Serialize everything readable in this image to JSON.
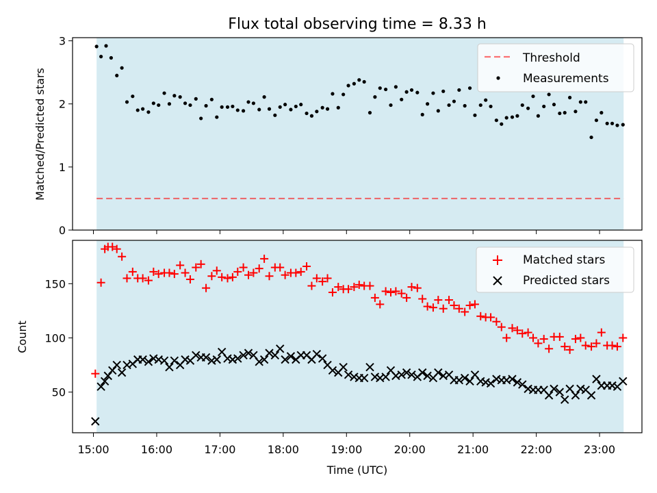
{
  "figure": {
    "title": "Flux total observing time = 8.33 h",
    "colors": {
      "shade": "#add8e6",
      "threshold": "#ff0000",
      "matched": "#ff0000",
      "predicted": "#000000",
      "measurements": "#000000"
    }
  },
  "chart_data": [
    {
      "type": "scatter",
      "ylabel": "Matched/Predicted stars",
      "xlim_hours": [
        14.67,
        23.67
      ],
      "ylim": [
        0,
        3.05
      ],
      "xticks": [
        "15:00",
        "16:00",
        "17:00",
        "18:00",
        "19:00",
        "20:00",
        "21:00",
        "22:00",
        "23:00"
      ],
      "yticks": [
        "0",
        "1",
        "2",
        "3"
      ],
      "yticks_values": [
        0,
        1,
        2,
        3
      ],
      "shaded_span_hours": [
        15.05,
        23.38
      ],
      "legend_position": "top-right",
      "threshold": {
        "name": "Threshold",
        "value": 0.5
      },
      "series": [
        {
          "name": "Measurements",
          "x": [
            15.05,
            15.12,
            15.2,
            15.28,
            15.37,
            15.45,
            15.53,
            15.62,
            15.7,
            15.78,
            15.87,
            15.95,
            16.03,
            16.12,
            16.2,
            16.28,
            16.37,
            16.45,
            16.53,
            16.62,
            16.7,
            16.78,
            16.87,
            16.95,
            17.03,
            17.12,
            17.2,
            17.28,
            17.37,
            17.45,
            17.53,
            17.62,
            17.7,
            17.78,
            17.87,
            17.95,
            18.03,
            18.12,
            18.2,
            18.28,
            18.37,
            18.45,
            18.53,
            18.62,
            18.7,
            18.78,
            18.87,
            18.95,
            19.03,
            19.12,
            19.2,
            19.28,
            19.37,
            19.45,
            19.53,
            19.62,
            19.7,
            19.78,
            19.87,
            19.95,
            20.03,
            20.12,
            20.2,
            20.28,
            20.37,
            20.45,
            20.53,
            20.62,
            20.7,
            20.78,
            20.87,
            20.95,
            21.03,
            21.12,
            21.2,
            21.28,
            21.37,
            21.45,
            21.53,
            21.62,
            21.7,
            21.78,
            21.87,
            21.95,
            22.03,
            22.12,
            22.2,
            22.28,
            22.37,
            22.45,
            22.53,
            22.62,
            22.7,
            22.78,
            22.87,
            22.95,
            23.03,
            23.12,
            23.2,
            23.28,
            23.37
          ],
          "y": [
            2.91,
            2.75,
            2.92,
            2.73,
            2.45,
            2.57,
            2.03,
            2.12,
            1.9,
            1.92,
            1.87,
            2.01,
            1.98,
            2.17,
            2.0,
            2.13,
            2.11,
            2.01,
            1.98,
            2.08,
            1.77,
            1.97,
            2.07,
            1.79,
            1.95,
            1.95,
            1.96,
            1.9,
            1.89,
            2.03,
            2.01,
            1.91,
            2.11,
            1.92,
            1.82,
            1.95,
            1.99,
            1.91,
            1.96,
            1.99,
            1.85,
            1.81,
            1.88,
            1.94,
            1.92,
            2.16,
            1.94,
            2.15,
            2.29,
            2.32,
            2.38,
            2.35,
            1.86,
            2.11,
            2.25,
            2.23,
            1.98,
            2.27,
            2.07,
            2.19,
            2.22,
            2.18,
            1.83,
            2.0,
            2.17,
            1.89,
            2.2,
            1.98,
            2.04,
            2.22,
            1.97,
            2.25,
            1.82,
            1.98,
            2.06,
            1.96,
            1.74,
            1.68,
            1.78,
            1.79,
            1.81,
            1.98,
            1.93,
            2.12,
            1.81,
            1.96,
            2.15,
            1.99,
            1.85,
            1.86,
            2.1,
            1.88,
            2.03,
            2.03,
            1.47,
            1.74,
            1.86,
            1.69,
            1.69,
            1.66,
            1.67
          ]
        }
      ]
    },
    {
      "type": "scatter",
      "xlabel": "Time (UTC)",
      "ylabel": "Count",
      "xlim_hours": [
        14.67,
        23.67
      ],
      "ylim": [
        12.5,
        190
      ],
      "xticks": [
        "15:00",
        "16:00",
        "17:00",
        "18:00",
        "19:00",
        "20:00",
        "21:00",
        "22:00",
        "23:00"
      ],
      "yticks": [
        "50",
        "100",
        "150"
      ],
      "yticks_values": [
        50,
        100,
        150
      ],
      "shaded_span_hours": [
        15.05,
        23.38
      ],
      "legend_position": "top-right",
      "series": [
        {
          "name": "Matched stars",
          "marker": "+",
          "x": [
            15.03,
            15.12,
            15.18,
            15.23,
            15.3,
            15.37,
            15.45,
            15.53,
            15.62,
            15.7,
            15.78,
            15.87,
            15.95,
            16.03,
            16.12,
            16.2,
            16.28,
            16.37,
            16.45,
            16.53,
            16.62,
            16.7,
            16.78,
            16.87,
            16.95,
            17.03,
            17.12,
            17.2,
            17.28,
            17.37,
            17.45,
            17.53,
            17.62,
            17.7,
            17.78,
            17.87,
            17.95,
            18.03,
            18.12,
            18.2,
            18.28,
            18.37,
            18.45,
            18.53,
            18.62,
            18.7,
            18.78,
            18.87,
            18.95,
            19.03,
            19.12,
            19.2,
            19.28,
            19.37,
            19.45,
            19.53,
            19.62,
            19.7,
            19.78,
            19.87,
            19.95,
            20.03,
            20.12,
            20.2,
            20.28,
            20.37,
            20.45,
            20.53,
            20.62,
            20.7,
            20.78,
            20.87,
            20.95,
            21.03,
            21.12,
            21.2,
            21.28,
            21.37,
            21.45,
            21.53,
            21.62,
            21.7,
            21.78,
            21.87,
            21.95,
            22.03,
            22.12,
            22.2,
            22.28,
            22.37,
            22.45,
            22.53,
            22.62,
            22.7,
            22.78,
            22.87,
            22.95,
            23.03,
            23.12,
            23.2,
            23.28,
            23.37
          ],
          "y": [
            67,
            151,
            182,
            184,
            184,
            182,
            175,
            155,
            161,
            155,
            155,
            153,
            161,
            159,
            160,
            160,
            159,
            167,
            160,
            154,
            165,
            168,
            146,
            157,
            162,
            156,
            155,
            156,
            161,
            165,
            158,
            160,
            164,
            173,
            157,
            165,
            165,
            158,
            160,
            160,
            161,
            166,
            148,
            155,
            152,
            155,
            142,
            147,
            145,
            145,
            147,
            149,
            148,
            148,
            137,
            131,
            143,
            142,
            143,
            141,
            137,
            147,
            146,
            136,
            129,
            128,
            135,
            127,
            135,
            130,
            127,
            124,
            130,
            131,
            120,
            119,
            119,
            115,
            110,
            100,
            109,
            107,
            104,
            105,
            100,
            95,
            99,
            90,
            101,
            101,
            92,
            89,
            99,
            100,
            93,
            92,
            95,
            105,
            93,
            93,
            92,
            100
          ]
        },
        {
          "name": "Predicted stars",
          "marker": "x",
          "x": [
            15.03,
            15.12,
            15.18,
            15.23,
            15.3,
            15.37,
            15.45,
            15.53,
            15.62,
            15.7,
            15.78,
            15.87,
            15.95,
            16.03,
            16.12,
            16.2,
            16.28,
            16.37,
            16.45,
            16.53,
            16.62,
            16.7,
            16.78,
            16.87,
            16.95,
            17.03,
            17.12,
            17.2,
            17.28,
            17.37,
            17.45,
            17.53,
            17.62,
            17.7,
            17.78,
            17.87,
            17.95,
            18.03,
            18.12,
            18.2,
            18.28,
            18.37,
            18.45,
            18.53,
            18.62,
            18.7,
            18.78,
            18.87,
            18.95,
            19.03,
            19.12,
            19.2,
            19.28,
            19.37,
            19.45,
            19.53,
            19.62,
            19.7,
            19.78,
            19.87,
            19.95,
            20.03,
            20.12,
            20.2,
            20.28,
            20.37,
            20.45,
            20.53,
            20.62,
            20.7,
            20.78,
            20.87,
            20.95,
            21.03,
            21.12,
            21.2,
            21.28,
            21.37,
            21.45,
            21.53,
            21.62,
            21.7,
            21.78,
            21.87,
            21.95,
            22.03,
            22.12,
            22.2,
            22.28,
            22.37,
            22.45,
            22.53,
            22.62,
            22.7,
            22.78,
            22.87,
            22.95,
            23.03,
            23.12,
            23.2,
            23.28,
            23.37
          ],
          "y": [
            23,
            55,
            60,
            65,
            70,
            75,
            68,
            75,
            76,
            80,
            80,
            78,
            81,
            80,
            79,
            73,
            79,
            75,
            80,
            79,
            84,
            82,
            82,
            79,
            80,
            87,
            81,
            80,
            81,
            84,
            86,
            84,
            78,
            80,
            86,
            84,
            90,
            80,
            83,
            80,
            84,
            84,
            80,
            85,
            81,
            75,
            70,
            68,
            73,
            66,
            64,
            63,
            63,
            73,
            64,
            63,
            64,
            70,
            65,
            66,
            68,
            66,
            64,
            68,
            65,
            63,
            68,
            65,
            66,
            61,
            61,
            63,
            60,
            66,
            60,
            59,
            58,
            62,
            61,
            61,
            62,
            59,
            57,
            53,
            52,
            52,
            52,
            47,
            53,
            50,
            43,
            53,
            47,
            53,
            52,
            47,
            62,
            56,
            56,
            56,
            55,
            60
          ]
        }
      ]
    }
  ]
}
